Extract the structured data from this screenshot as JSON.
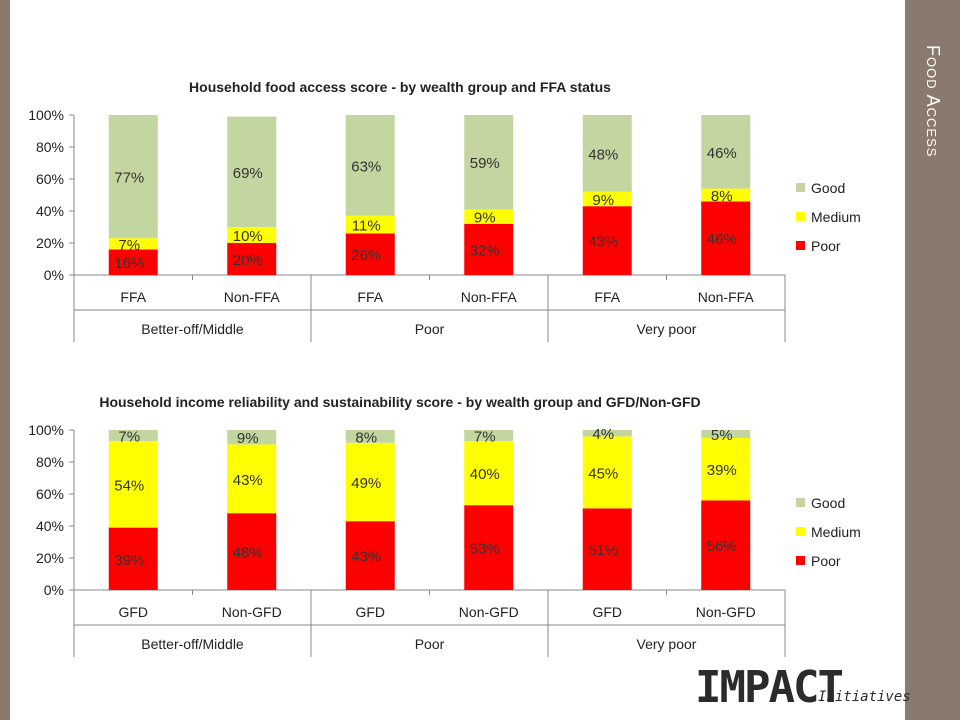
{
  "slide": {
    "side_title": "Food Access",
    "logo_main": "IMPACT",
    "logo_sub": "Initiatives",
    "colors": {
      "frame": "#8a7a6d",
      "good": "#c4d6a0",
      "medium": "#ffff00",
      "poor": "#ff0000"
    }
  },
  "chart_data": [
    {
      "type": "bar",
      "stacked": true,
      "title": "Household food access score -  by wealth group and FFA status",
      "categories": [
        "FFA",
        "Non-FFA",
        "FFA",
        "Non-FFA",
        "FFA",
        "Non-FFA"
      ],
      "groups": [
        "Better-off/Middle",
        "Poor",
        "Very poor"
      ],
      "yticks": [
        "0%",
        "20%",
        "40%",
        "60%",
        "80%",
        "100%"
      ],
      "ylim": [
        0,
        100
      ],
      "series": [
        {
          "name": "Poor",
          "color": "#ff0000",
          "values": [
            16,
            20,
            26,
            32,
            43,
            46
          ],
          "labels": [
            "16%",
            "20%",
            "26%",
            "32%",
            "43%",
            "46%"
          ]
        },
        {
          "name": "Medium",
          "color": "#ffff00",
          "values": [
            7,
            10,
            11,
            9,
            9,
            8
          ],
          "labels": [
            "7%",
            "10%",
            "11%",
            "9%",
            "9%",
            "8%"
          ]
        },
        {
          "name": "Good",
          "color": "#c4d6a0",
          "values": [
            77,
            69,
            63,
            59,
            48,
            46
          ],
          "labels": [
            "77%",
            "69%",
            "63%",
            "59%",
            "48%",
            "46%"
          ]
        }
      ],
      "legend": [
        "Good",
        "Medium",
        "Poor"
      ],
      "legend_position": "right"
    },
    {
      "type": "bar",
      "stacked": true,
      "title": "Household income reliability and sustainability score - by wealth group and GFD/Non-GFD",
      "categories": [
        "GFD",
        "Non-GFD",
        "GFD",
        "Non-GFD",
        "GFD",
        "Non-GFD"
      ],
      "groups": [
        "Better-off/Middle",
        "Poor",
        "Very poor"
      ],
      "yticks": [
        "0%",
        "20%",
        "40%",
        "60%",
        "80%",
        "100%"
      ],
      "ylim": [
        0,
        100
      ],
      "series": [
        {
          "name": "Poor",
          "color": "#ff0000",
          "values": [
            39,
            48,
            43,
            53,
            51,
            56
          ],
          "labels": [
            "39%",
            "48%",
            "43%",
            "53%",
            "51%",
            "56%"
          ]
        },
        {
          "name": "Medium",
          "color": "#ffff00",
          "values": [
            54,
            43,
            49,
            40,
            45,
            39
          ],
          "labels": [
            "54%",
            "43%",
            "49%",
            "40%",
            "45%",
            "39%"
          ]
        },
        {
          "name": "Good",
          "color": "#c4d6a0",
          "values": [
            7,
            9,
            8,
            7,
            4,
            5
          ],
          "labels": [
            "7%",
            "9%",
            "8%",
            "7%",
            "4%",
            "5%"
          ]
        }
      ],
      "legend": [
        "Good",
        "Medium",
        "Poor"
      ],
      "legend_position": "right"
    }
  ]
}
